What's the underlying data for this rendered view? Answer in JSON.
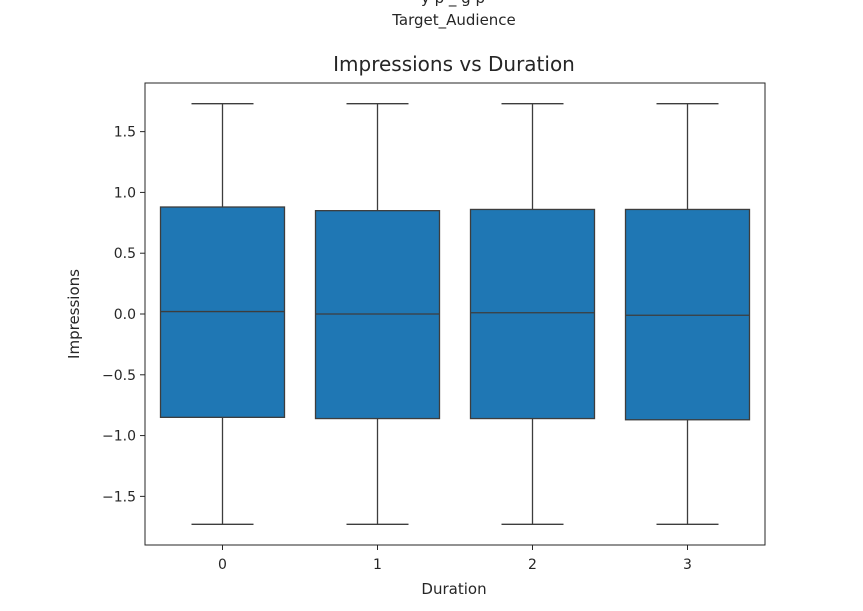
{
  "top_fragment": "Target_Audience",
  "chart_data": {
    "type": "box",
    "title": "Impressions vs Duration",
    "xlabel": "Duration",
    "ylabel": "Impressions",
    "categories": [
      "0",
      "1",
      "2",
      "3"
    ],
    "boxes": [
      {
        "category": "0",
        "whisker_low": -1.73,
        "q1": -0.85,
        "median": 0.02,
        "q3": 0.88,
        "whisker_high": 1.73
      },
      {
        "category": "1",
        "whisker_low": -1.73,
        "q1": -0.86,
        "median": 0.0,
        "q3": 0.85,
        "whisker_high": 1.73
      },
      {
        "category": "2",
        "whisker_low": -1.73,
        "q1": -0.86,
        "median": 0.01,
        "q3": 0.86,
        "whisker_high": 1.73
      },
      {
        "category": "3",
        "whisker_low": -1.73,
        "q1": -0.87,
        "median": -0.01,
        "q3": 0.86,
        "whisker_high": 1.73
      }
    ],
    "ylim": [
      -1.9,
      1.9
    ],
    "yticks": [
      -1.5,
      -1.0,
      -0.5,
      0.0,
      0.5,
      1.0,
      1.5
    ],
    "ytick_labels": [
      "−1.5",
      "−1.0",
      "−0.5",
      "0.0",
      "0.5",
      "1.0",
      "1.5"
    ],
    "box_color": "#1f77b4",
    "line_color": "#3d3d3d",
    "grid": false,
    "legend": "none"
  }
}
